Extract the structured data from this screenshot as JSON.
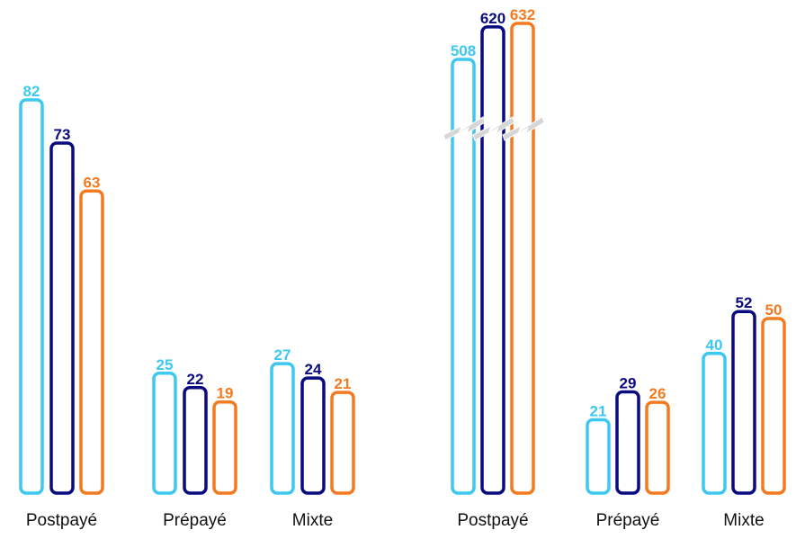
{
  "chart_data": [
    {
      "type": "bar",
      "categories": [
        "Postpayé",
        "Prépayé",
        "Mixte"
      ],
      "series": [
        {
          "values": [
            82,
            25,
            27
          ],
          "color": "#3cc8f0"
        },
        {
          "values": [
            73,
            22,
            24
          ],
          "color": "#0a0a80"
        },
        {
          "values": [
            63,
            19,
            21
          ],
          "color": "#f47a20"
        }
      ],
      "ylim": [
        0,
        82
      ]
    },
    {
      "type": "bar",
      "categories": [
        "Postpayé",
        "Prépayé",
        "Mixte"
      ],
      "series": [
        {
          "values": [
            508,
            21,
            40
          ],
          "color": "#3cc8f0"
        },
        {
          "values": [
            620,
            29,
            52
          ],
          "color": "#0a0a80"
        },
        {
          "values": [
            632,
            26,
            50
          ],
          "color": "#f47a20"
        }
      ],
      "axis_break": true
    }
  ]
}
